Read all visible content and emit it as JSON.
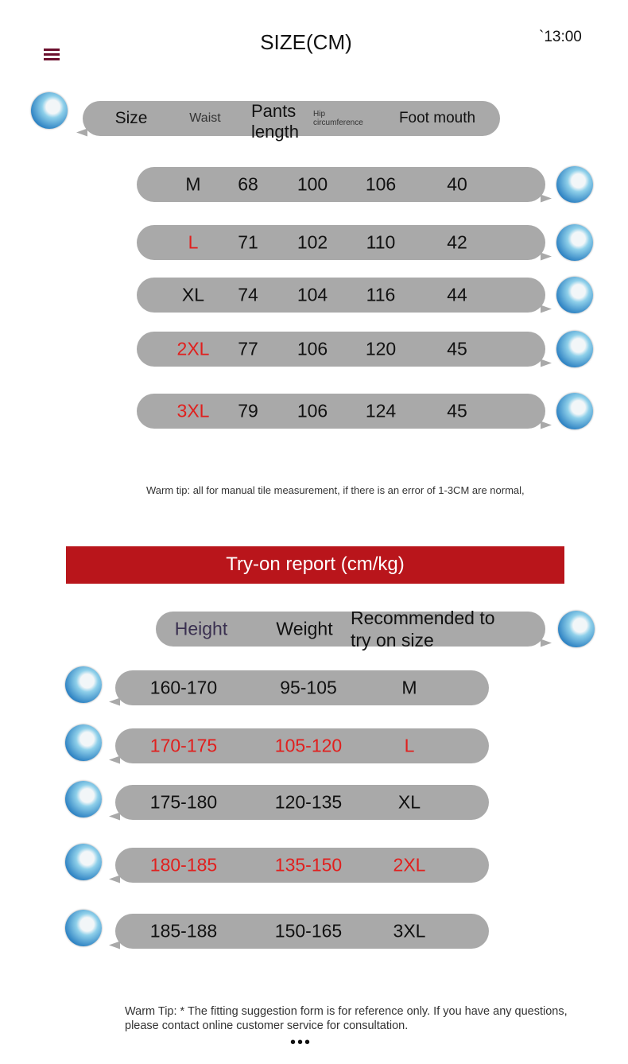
{
  "header": {
    "title": "SIZE(CM)",
    "time": "`13:00",
    "menu_icon": "hamburger-icon"
  },
  "size_table": {
    "headers": {
      "size": "Size",
      "waist": "Waist",
      "pants_length": "Pants length",
      "hip": "Hip circumference",
      "foot_mouth": "Foot mouth"
    },
    "rows": [
      {
        "size": "M",
        "waist": "68",
        "length": "100",
        "hip": "106",
        "foot": "40",
        "highlight": false
      },
      {
        "size": "L",
        "waist": "71",
        "length": "102",
        "hip": "110",
        "foot": "42",
        "highlight": true
      },
      {
        "size": "XL",
        "waist": "74",
        "length": "104",
        "hip": "116",
        "foot": "44",
        "highlight": false
      },
      {
        "size": "2XL",
        "waist": "77",
        "length": "106",
        "hip": "120",
        "foot": "45",
        "highlight": true
      },
      {
        "size": "3XL",
        "waist": "79",
        "length": "106",
        "hip": "124",
        "foot": "45",
        "highlight": true
      }
    ],
    "tip": "Warm tip: all for manual tile measurement, if there is an error of 1-3CM are normal,"
  },
  "tryon": {
    "banner": "Try-on report (cm/kg)",
    "banner_color": "#b9151b",
    "headers": {
      "height": "Height",
      "weight": "Weight",
      "recommended": "Recommended to try on size"
    },
    "rows": [
      {
        "height": "160-170",
        "weight": "95-105",
        "size": "M",
        "highlight": false
      },
      {
        "height": "170-175",
        "weight": "105-120",
        "size": "L",
        "highlight": true
      },
      {
        "height": "175-180",
        "weight": "120-135",
        "size": "XL",
        "highlight": false
      },
      {
        "height": "180-185",
        "weight": "135-150",
        "size": "2XL",
        "highlight": true
      },
      {
        "height": "185-188",
        "weight": "150-165",
        "size": "3XL",
        "highlight": false
      }
    ],
    "tip": "Warm Tip: * The fitting suggestion form is for reference only. If you have any questions, please contact online customer service for consultation."
  },
  "colors": {
    "bubble": "#a9a9a9",
    "highlight": "#e0201e"
  },
  "more_icon": "ellipsis-icon"
}
